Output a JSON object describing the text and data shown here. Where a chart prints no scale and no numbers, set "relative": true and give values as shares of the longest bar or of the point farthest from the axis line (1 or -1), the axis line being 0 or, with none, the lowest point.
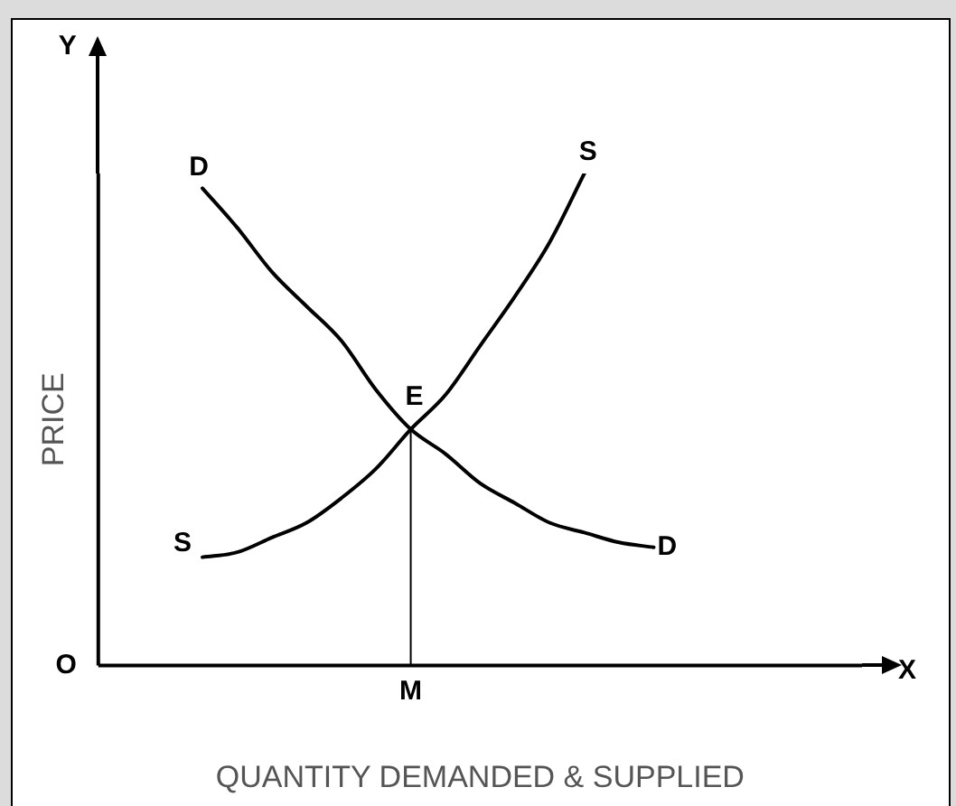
{
  "chart_data": {
    "type": "line",
    "relative": true,
    "xlabel": "QUANTITY DEMANDED & SUPPLIED",
    "ylabel": "PRICE",
    "grid": false,
    "legend": false,
    "marker": "none",
    "line_style": "solid",
    "categories": [
      null,
      null,
      null,
      null,
      null,
      null,
      null,
      null,
      null,
      null,
      null,
      null,
      null,
      null,
      null,
      null,
      null,
      null,
      null,
      null,
      null,
      null,
      null
    ],
    "series": [
      {
        "name": "D",
        "color": "#000000",
        "values": [
          null,
          null,
          null,
          0.97,
          0.89,
          0.8,
          0.73,
          0.66,
          0.56,
          0.48,
          0.43,
          0.37,
          0.33,
          0.29,
          0.27,
          0.25,
          0.24,
          null,
          null,
          null,
          null,
          null,
          null
        ]
      },
      {
        "name": "S",
        "color": "#000000",
        "values": [
          null,
          null,
          null,
          0.22,
          0.23,
          0.26,
          0.29,
          0.34,
          0.4,
          0.48,
          0.55,
          0.65,
          0.75,
          0.86,
          1,
          null,
          null,
          null,
          null,
          null,
          null,
          null,
          null
        ]
      }
    ],
    "annotations": [
      "Y",
      "X",
      "O",
      "M",
      {
        "text": "E",
        "y": 0.48
      }
    ]
  }
}
